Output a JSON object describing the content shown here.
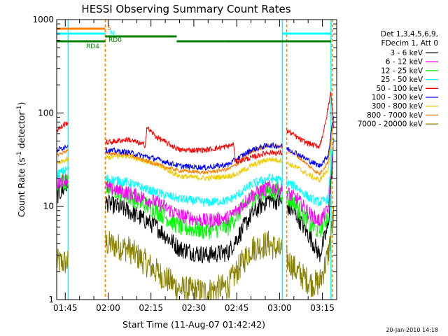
{
  "chart_data": {
    "type": "line",
    "title": "HESSI Observing Summary Count Rates",
    "xlabel": "Start Time (11-Aug-07 01:42:42)",
    "ylabel_parts": [
      "Count Rate (s",
      "-1",
      " detector",
      "-1",
      ")"
    ],
    "ylog": true,
    "ylim": [
      1,
      1000
    ],
    "xlim_min": [
      0,
      98
    ],
    "x_unit": "minutes after 01:42",
    "yticks": [
      {
        "v": 1,
        "label": "1"
      },
      {
        "v": 10,
        "label": "10"
      },
      {
        "v": 100,
        "label": "100"
      },
      {
        "v": 1000,
        "label": "1000"
      }
    ],
    "xticks": [
      {
        "m": 3,
        "label": "01:45"
      },
      {
        "m": 18,
        "label": "02:00"
      },
      {
        "m": 33,
        "label": "02:15"
      },
      {
        "m": 48,
        "label": "02:30"
      },
      {
        "m": 63,
        "label": "02:45"
      },
      {
        "m": 78,
        "label": "03:00"
      },
      {
        "m": 93,
        "label": "03:15"
      }
    ],
    "legend_header": [
      "Det 1,3,4,5,6,9,",
      "FDecim 1, Att 0"
    ],
    "gaps": [
      [
        4,
        17
      ],
      [
        79,
        80.5
      ]
    ],
    "series": [
      {
        "name": "3 - 6 keV",
        "color": "#000000",
        "noise": 0.1,
        "points": [
          [
            0,
            13
          ],
          [
            4,
            17
          ],
          [
            17,
            11
          ],
          [
            25,
            9
          ],
          [
            35,
            6
          ],
          [
            43,
            3.5
          ],
          [
            52,
            3
          ],
          [
            60,
            3.2
          ],
          [
            63,
            4.5
          ],
          [
            68,
            8
          ],
          [
            74,
            12
          ],
          [
            79,
            11
          ],
          [
            84,
            8
          ],
          [
            89,
            4.5
          ],
          [
            92,
            3
          ],
          [
            95,
            6
          ],
          [
            97,
            50
          ]
        ]
      },
      {
        "name": "6 - 12 keV",
        "color": "#ff00ff",
        "noise": 0.08,
        "points": [
          [
            0,
            18
          ],
          [
            4,
            20
          ],
          [
            17,
            16
          ],
          [
            25,
            14
          ],
          [
            35,
            11
          ],
          [
            43,
            8
          ],
          [
            52,
            7
          ],
          [
            60,
            7.5
          ],
          [
            63,
            9
          ],
          [
            68,
            13
          ],
          [
            74,
            16
          ],
          [
            79,
            15
          ],
          [
            84,
            12
          ],
          [
            89,
            8
          ],
          [
            92,
            7
          ],
          [
            95,
            9
          ],
          [
            97,
            55
          ]
        ]
      },
      {
        "name": "12 - 25 keV",
        "color": "#00ff00",
        "noise": 0.1,
        "points": [
          [
            0,
            17
          ],
          [
            4,
            18
          ],
          [
            17,
            17
          ],
          [
            25,
            13
          ],
          [
            35,
            9
          ],
          [
            43,
            6
          ],
          [
            52,
            5.5
          ],
          [
            60,
            6
          ],
          [
            63,
            8
          ],
          [
            68,
            12
          ],
          [
            74,
            15
          ],
          [
            79,
            14
          ],
          [
            84,
            10
          ],
          [
            89,
            6
          ],
          [
            92,
            5.5
          ],
          [
            95,
            8
          ],
          [
            97,
            60
          ]
        ]
      },
      {
        "name": "25 - 50 keV",
        "color": "#00ffff",
        "noise": 0.05,
        "points": [
          [
            0,
            22
          ],
          [
            4,
            25
          ],
          [
            17,
            20
          ],
          [
            25,
            18
          ],
          [
            35,
            14
          ],
          [
            43,
            12
          ],
          [
            52,
            11
          ],
          [
            60,
            11.5
          ],
          [
            63,
            13
          ],
          [
            68,
            17
          ],
          [
            74,
            20
          ],
          [
            79,
            19
          ],
          [
            84,
            16
          ],
          [
            89,
            12
          ],
          [
            92,
            11
          ],
          [
            95,
            12
          ],
          [
            97,
            60
          ]
        ]
      },
      {
        "name": "50 - 100 keV",
        "color": "#ff0000",
        "noise": 0.03,
        "points": [
          [
            0,
            65
          ],
          [
            4,
            80
          ],
          [
            17,
            48
          ],
          [
            25,
            52
          ],
          [
            31,
            45
          ],
          [
            31.5,
            70
          ],
          [
            35,
            55
          ],
          [
            43,
            40
          ],
          [
            52,
            40
          ],
          [
            60,
            44
          ],
          [
            62,
            46
          ],
          [
            62.5,
            30
          ],
          [
            68,
            33
          ],
          [
            74,
            38
          ],
          [
            79,
            37
          ],
          [
            80.5,
            65
          ],
          [
            86,
            50
          ],
          [
            90,
            45
          ],
          [
            92,
            44
          ],
          [
            94,
            75
          ],
          [
            96,
            170
          ],
          [
            97,
            60
          ]
        ]
      },
      {
        "name": "100 - 300 keV",
        "color": "#0000ff",
        "noise": 0.03,
        "points": [
          [
            0,
            40
          ],
          [
            4,
            45
          ],
          [
            17,
            40
          ],
          [
            25,
            38
          ],
          [
            35,
            32
          ],
          [
            43,
            27
          ],
          [
            52,
            26
          ],
          [
            60,
            28
          ],
          [
            63,
            32
          ],
          [
            68,
            40
          ],
          [
            74,
            45
          ],
          [
            79,
            44
          ],
          [
            84,
            37
          ],
          [
            89,
            30
          ],
          [
            92,
            27
          ],
          [
            95,
            35
          ],
          [
            97,
            100
          ]
        ]
      },
      {
        "name": "300 - 800 keV",
        "color": "#eecc00",
        "noise": 0.03,
        "points": [
          [
            0,
            28
          ],
          [
            4,
            32
          ],
          [
            17,
            33
          ],
          [
            25,
            35
          ],
          [
            35,
            28
          ],
          [
            43,
            21
          ],
          [
            52,
            20
          ],
          [
            60,
            21
          ],
          [
            63,
            22
          ],
          [
            68,
            27
          ],
          [
            74,
            32
          ],
          [
            79,
            31
          ],
          [
            84,
            26
          ],
          [
            89,
            21
          ],
          [
            92,
            19
          ],
          [
            95,
            25
          ],
          [
            97,
            80
          ]
        ]
      },
      {
        "name": "800 - 7000 keV",
        "color": "#ff8000",
        "noise": 0.02,
        "points": [
          [
            0,
            35
          ],
          [
            4,
            40
          ],
          [
            17,
            37
          ],
          [
            25,
            36
          ],
          [
            35,
            28
          ],
          [
            43,
            24
          ],
          [
            52,
            23
          ],
          [
            60,
            25
          ],
          [
            63,
            28
          ],
          [
            68,
            38
          ],
          [
            74,
            45
          ],
          [
            79,
            43
          ],
          [
            84,
            35
          ],
          [
            89,
            26
          ],
          [
            92,
            22
          ],
          [
            95,
            30
          ],
          [
            97,
            90
          ]
        ]
      },
      {
        "name": "7000 - 20000 keV",
        "color": "#888000",
        "noise": 0.15,
        "points": [
          [
            0,
            2.5
          ],
          [
            4,
            2.5
          ],
          [
            17,
            4
          ],
          [
            25,
            3.5
          ],
          [
            35,
            2
          ],
          [
            43,
            1.3
          ],
          [
            52,
            1.2
          ],
          [
            60,
            1.4
          ],
          [
            63,
            2
          ],
          [
            68,
            3.5
          ],
          [
            74,
            4
          ],
          [
            79,
            3.2
          ],
          [
            84,
            2
          ],
          [
            89,
            1.5
          ],
          [
            92,
            1.5
          ],
          [
            95,
            3
          ],
          [
            97,
            8
          ]
        ]
      }
    ],
    "flag_lines": [
      {
        "color": "#ff8000",
        "label": "S",
        "segments": [
          [
            0,
            17
          ]
        ]
      },
      {
        "color": "#00ffff",
        "label": "N",
        "segments": [
          [
            0,
            17
          ],
          [
            79,
            96
          ]
        ]
      },
      {
        "color": "#008000",
        "label": "RD0",
        "segments": [
          [
            17,
            42
          ]
        ]
      },
      {
        "color": "#008000",
        "label": "RD4",
        "segments": [
          [
            0,
            17
          ],
          [
            42,
            59
          ],
          [
            59,
            91
          ],
          [
            91,
            96
          ]
        ]
      }
    ],
    "vertical_markers": [
      {
        "m": 4,
        "color": "#00ffff",
        "style": "solid"
      },
      {
        "m": 17,
        "color": "#ff8000",
        "style": "dashed"
      },
      {
        "m": 79,
        "color": "#00ffff",
        "style": "solid"
      },
      {
        "m": 80.5,
        "color": "#ff8000",
        "style": "dashed"
      },
      {
        "m": 96,
        "color": "#00ffff",
        "style": "solid"
      },
      {
        "m": 96.5,
        "color": "#ff8000",
        "style": "dashed"
      }
    ],
    "footer": "20-Jan-2010 14:18"
  }
}
